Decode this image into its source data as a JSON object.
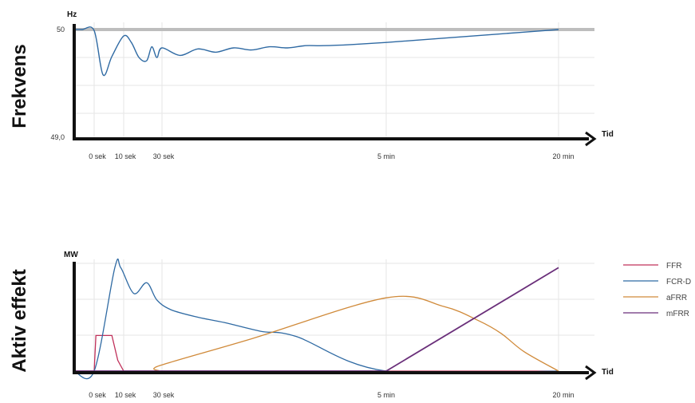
{
  "colors": {
    "FFR": "#c0305a",
    "FCR-D": "#2f6aa3",
    "aFRR": "#d08a3a",
    "mFRR": "#6a2f7a",
    "nominal": "#bdbdbd",
    "grid": "#e6e6e6",
    "axis": "#111111"
  },
  "chart_data": [
    {
      "type": "line",
      "ylabel": "Frekvens",
      "yunit": "Hz",
      "xlabel": "Tid",
      "x_ticks": [
        "0 sek",
        "10 sek",
        "30 sek",
        "5 min",
        "20 min"
      ],
      "y_ticks": [
        "50",
        "49,0"
      ],
      "ylim": [
        49.0,
        50.0
      ],
      "grid": true,
      "reference_line": 50.0,
      "series": [
        {
          "color_key": "FCR-D",
          "x": [
            -0.5,
            -0.3,
            0,
            0.3,
            0.6,
            1,
            1.3,
            1.6,
            1.9,
            2.1,
            2.3,
            2.5,
            2.7,
            2.9,
            3.1,
            3.3,
            3.5,
            3.7,
            3.9,
            4.1,
            4.3,
            4.6,
            5,
            6,
            7,
            8
          ],
          "y": [
            50.0,
            50.0,
            49.99,
            49.58,
            49.75,
            49.94,
            49.88,
            49.74,
            49.71,
            49.84,
            49.74,
            49.83,
            49.76,
            49.82,
            49.79,
            49.83,
            49.81,
            49.84,
            49.83,
            49.85,
            49.85,
            49.86,
            49.88,
            49.92,
            49.96,
            50.0
          ]
        }
      ]
    },
    {
      "type": "line",
      "ylabel": "Aktiv effekt",
      "yunit": "MW",
      "xlabel": "Tid",
      "x_ticks": [
        "0 sek",
        "10 sek",
        "30 sek",
        "5 min",
        "20 min"
      ],
      "grid": true,
      "legend_position": "right",
      "series": [
        {
          "name": "FFR",
          "x": [
            -0.5,
            0,
            0.06,
            0.6,
            0.8,
            1.0,
            5,
            8
          ],
          "y": [
            0,
            0,
            0.33,
            0.33,
            0.1,
            0,
            0,
            0
          ]
        },
        {
          "name": "FCR-D",
          "x": [
            -0.5,
            0,
            0.7,
            0.9,
            1.4,
            1.9,
            2.3,
            2.6,
            2.9,
            3.2,
            3.6,
            4,
            5,
            8
          ],
          "y": [
            0,
            0,
            0.96,
            0.96,
            0.72,
            0.82,
            0.66,
            0.57,
            0.5,
            0.45,
            0.37,
            0.32,
            0,
            0
          ]
        },
        {
          "name": "aFRR",
          "x": [
            -0.5,
            2.2,
            2.4,
            3.5,
            5,
            6,
            6.6,
            7,
            7.4,
            8
          ],
          "y": [
            0,
            0,
            0.05,
            0.3,
            0.68,
            0.6,
            0.47,
            0.35,
            0.18,
            0
          ]
        },
        {
          "name": "mFRR",
          "x": [
            -0.5,
            5,
            8
          ],
          "y": [
            0,
            0,
            0.96
          ]
        }
      ]
    }
  ]
}
